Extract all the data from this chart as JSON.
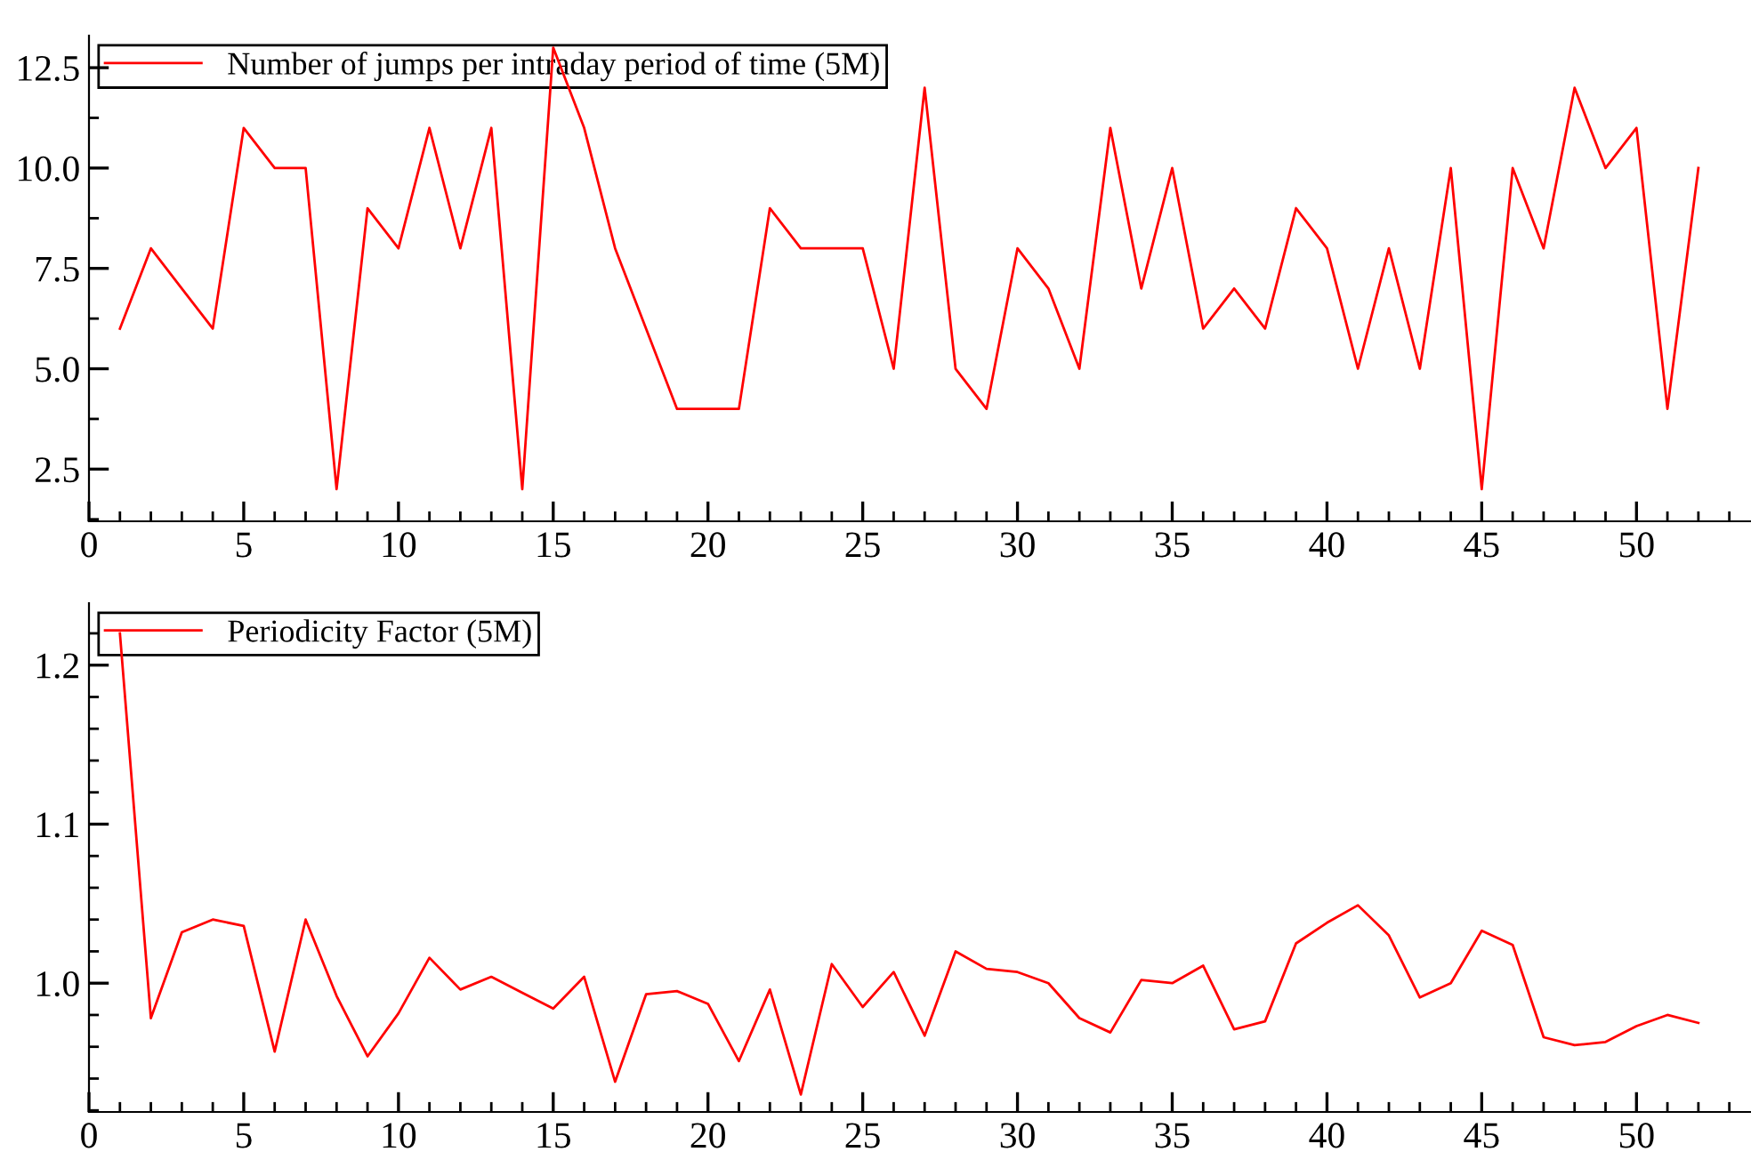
{
  "chart_data": [
    {
      "type": "line",
      "x": [
        1,
        2,
        3,
        4,
        5,
        6,
        7,
        8,
        9,
        10,
        11,
        12,
        13,
        14,
        15,
        16,
        17,
        18,
        19,
        20,
        21,
        22,
        23,
        24,
        25,
        26,
        27,
        28,
        29,
        30,
        31,
        32,
        33,
        34,
        35,
        36,
        37,
        38,
        39,
        40,
        41,
        42,
        43,
        44,
        45,
        46,
        47,
        48,
        49,
        50,
        51,
        52
      ],
      "series": [
        {
          "name": "Number of jumps per intraday period of time (5M)",
          "color": "#ff0000",
          "values": [
            6,
            8,
            7,
            6,
            11,
            10,
            10,
            2,
            9,
            8,
            11,
            8,
            11,
            2,
            13,
            11,
            8,
            6,
            4,
            4,
            4,
            9,
            8,
            8,
            8,
            5,
            12,
            5,
            4,
            8,
            7,
            5,
            11,
            7,
            10,
            6,
            7,
            6,
            9,
            8,
            5,
            8,
            5,
            10,
            2,
            10,
            8,
            12,
            10,
            11,
            4,
            10
          ]
        }
      ],
      "xlim": [
        0,
        53.7
      ],
      "xticks": [
        0,
        5,
        10,
        15,
        20,
        25,
        30,
        35,
        40,
        45,
        50
      ],
      "ylim": [
        1.2,
        13.3
      ],
      "yticks": [
        {
          "value": 2.5,
          "label": "2.5"
        },
        {
          "value": 5,
          "label": "5.0"
        },
        {
          "value": 7.5,
          "label": "7.5"
        },
        {
          "value": 10,
          "label": "10.0"
        },
        {
          "value": 12.5,
          "label": "12.5"
        }
      ],
      "legend": "top left",
      "grid": false,
      "marker": "none",
      "line_style": "solid"
    },
    {
      "type": "line",
      "x": [
        1,
        2,
        3,
        4,
        5,
        6,
        7,
        8,
        9,
        10,
        11,
        12,
        13,
        14,
        15,
        16,
        17,
        18,
        19,
        20,
        21,
        22,
        23,
        24,
        25,
        26,
        27,
        28,
        29,
        30,
        31,
        32,
        33,
        34,
        35,
        36,
        37,
        38,
        39,
        40,
        41,
        42,
        43,
        44,
        45,
        46,
        47,
        48,
        49,
        50,
        51,
        52
      ],
      "series": [
        {
          "name": "Periodicity Factor (5M)",
          "color": "#ff0000",
          "values": [
            1.22,
            0.978,
            1.032,
            1.04,
            1.036,
            0.957,
            1.04,
            0.992,
            0.954,
            0.981,
            1.016,
            0.996,
            1.004,
            0.994,
            0.984,
            1.004,
            0.938,
            0.993,
            0.995,
            0.987,
            0.951,
            0.996,
            0.93,
            1.012,
            0.985,
            1.007,
            0.967,
            1.02,
            1.009,
            1.007,
            1.0,
            0.978,
            0.969,
            1.002,
            1.0,
            1.011,
            0.971,
            0.976,
            1.025,
            1.038,
            1.049,
            1.03,
            0.991,
            1.0,
            1.033,
            1.024,
            0.966,
            0.961,
            0.963,
            0.973,
            0.98,
            0.975
          ]
        }
      ],
      "xlim": [
        0,
        53.7
      ],
      "xticks": [
        0,
        5,
        10,
        15,
        20,
        25,
        30,
        35,
        40,
        45,
        50
      ],
      "ylim": [
        0.919,
        1.239
      ],
      "yticks": [
        {
          "value": 1.0,
          "label": "1.0"
        },
        {
          "value": 1.1,
          "label": "1.1"
        },
        {
          "value": 1.2,
          "label": "1.2"
        }
      ],
      "legend": "top left",
      "grid": false,
      "marker": "none",
      "line_style": "solid"
    }
  ]
}
